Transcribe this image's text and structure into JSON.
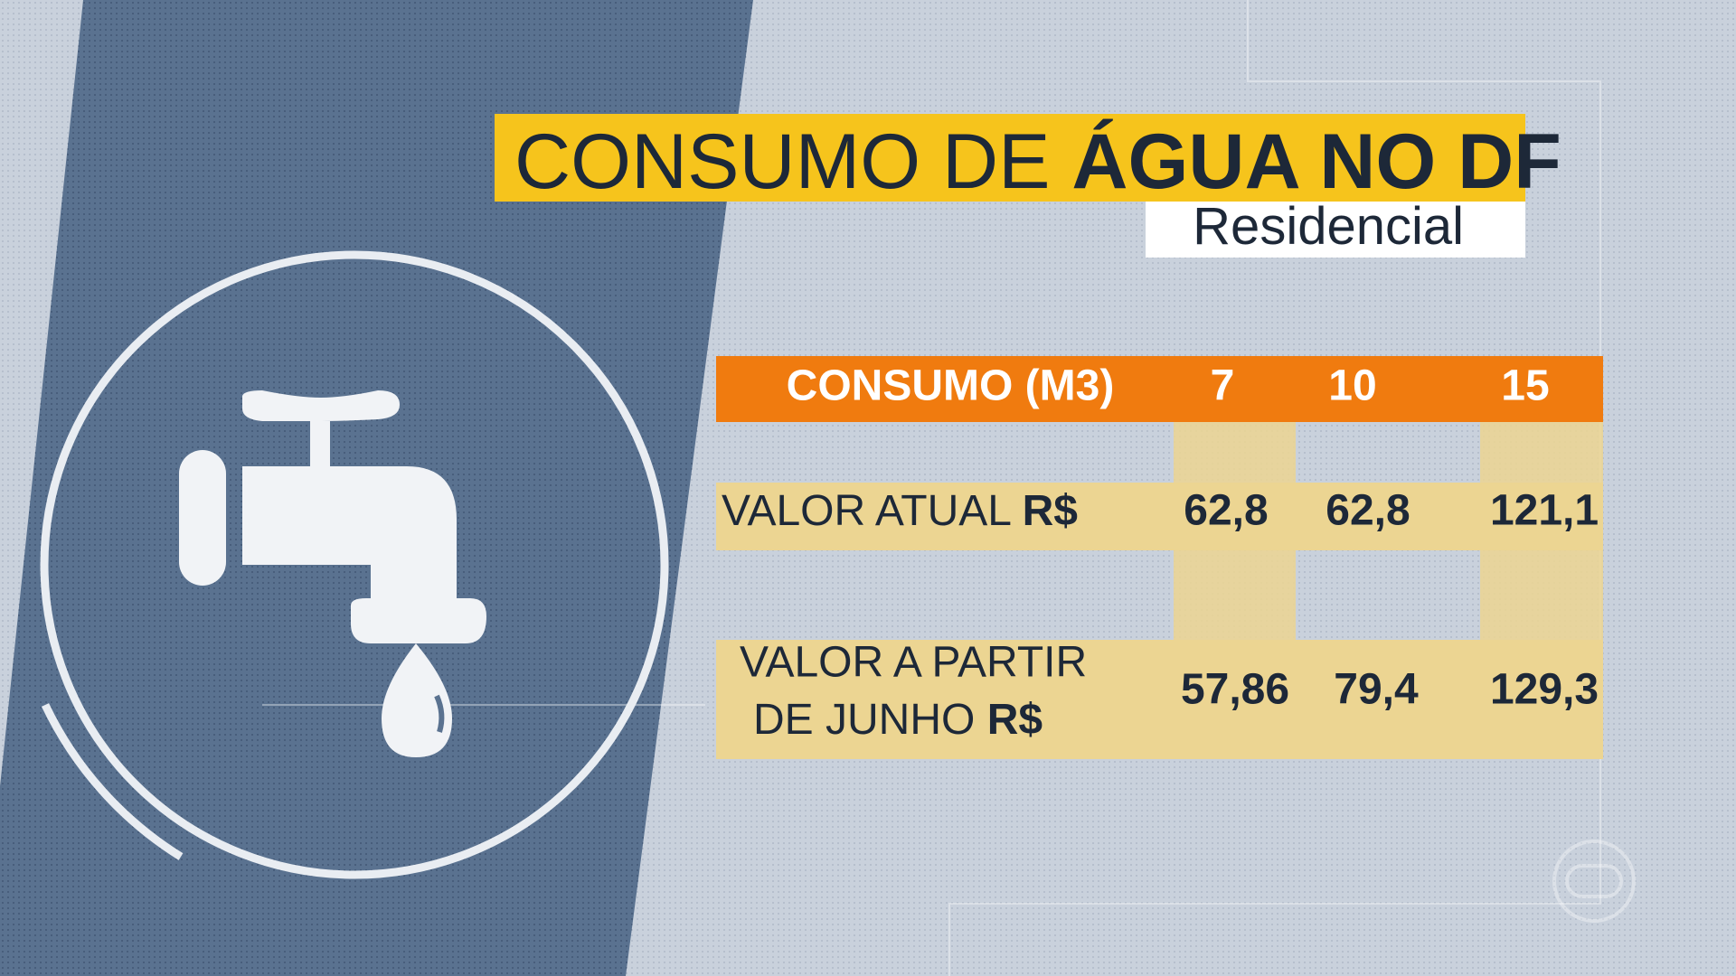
{
  "header": {
    "title_light": "CONSUMO DE",
    "title_bold": "ÁGUA NO DF",
    "subtitle": "Residencial"
  },
  "table": {
    "header": [
      "CONSUMO (M3)",
      "7",
      "10",
      "15"
    ],
    "rows": [
      {
        "label_lines": [
          "VALOR ATUAL"
        ],
        "unit": "R$",
        "values": [
          "62,8",
          "62,8",
          "121,1"
        ]
      },
      {
        "label_lines": [
          "VALOR A PARTIR",
          "DE JUNHO"
        ],
        "unit": "R$",
        "values": [
          "57,86",
          "79,4",
          "129,3"
        ]
      }
    ]
  }
}
